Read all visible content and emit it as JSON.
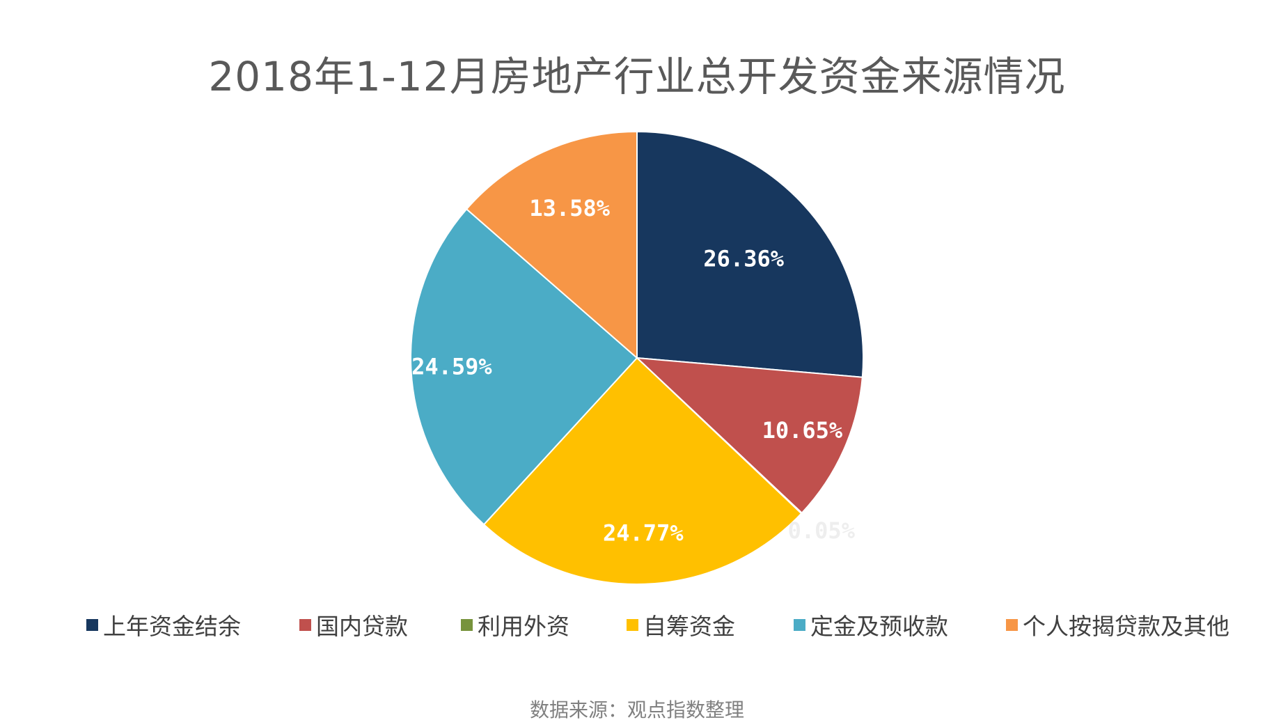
{
  "chart_data": {
    "type": "pie",
    "title": "2018年1-12月房地产行业总开发资金来源情况",
    "categories": [
      "上年资金结余",
      "国内贷款",
      "利用外资",
      "自筹资金",
      "定金及预收款",
      "个人按揭贷款及其他"
    ],
    "values": [
      26.36,
      10.65,
      0.05,
      24.77,
      24.59,
      13.58
    ],
    "labels": [
      "26.36%",
      "10.65%",
      "0.05%",
      "24.77%",
      "24.59%",
      "13.58%"
    ],
    "colors": [
      "#17375e",
      "#c0504d",
      "#77933c",
      "#ffc000",
      "#4bacc6",
      "#f79646"
    ],
    "start_angle_deg": 0,
    "direction": "clockwise",
    "legend_position": "bottom"
  },
  "source_note": "数据来源：观点指数整理"
}
